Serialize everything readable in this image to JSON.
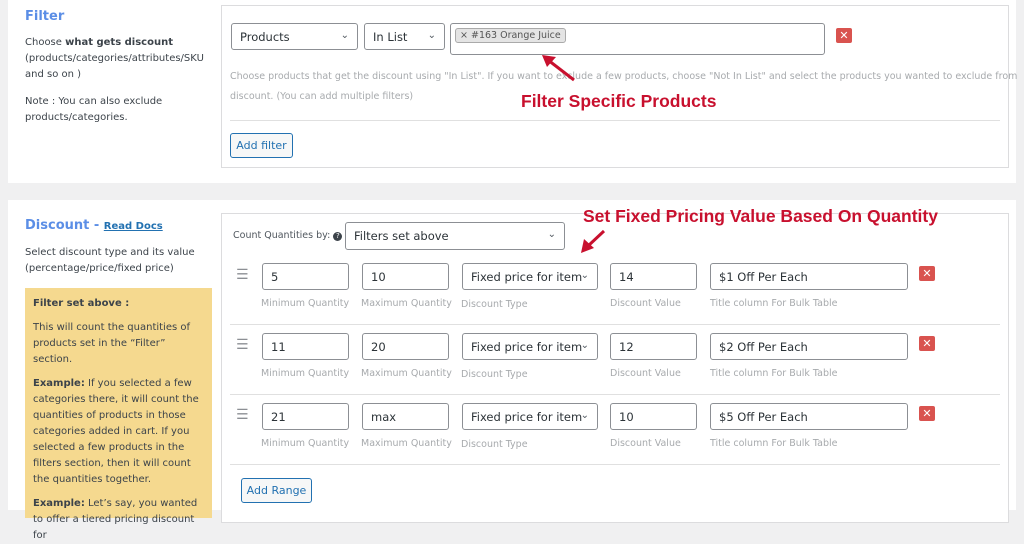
{
  "filter": {
    "title": "Filter",
    "desc_pre": "Choose ",
    "desc_bold": "what gets discount",
    "desc_post": "(products/categories/attributes/SKU and so on )",
    "note": "Note : You can also exclude products/categories.",
    "type_select": "Products",
    "operator_select": "In List",
    "selected_tag": "#163 Orange Juice",
    "help_line1": "Choose products that get the discount using \"In List\". If you want to exclude a few products, choose \"Not In List\" and select the products you wanted to exclude from",
    "help_line2": "discount. (You can add multiple filters)",
    "add_filter": "Add filter",
    "annotation": "Filter Specific Products"
  },
  "discount": {
    "title": "Discount - ",
    "read_docs": "Read Docs",
    "desc": "Select discount type and its value (percentage/price/fixed price)",
    "info_title": "Filter set above :",
    "info_p1": "This will count the quantities of products set in the “Filter” section.",
    "info_ex1_bold": "Example:",
    "info_ex1": " If you selected a few categories there, it will count the quantities of products in those categories added in cart. If you selected a few products in the filters section, then it will count the quantities together.",
    "info_ex2_bold": "Example:",
    "info_ex2": " Let’s say, you wanted to offer a tiered pricing discount for",
    "count_label": "Count Quantities by:",
    "count_select": "Filters set above",
    "annotation": "Set Fixed Pricing Value Based On Quantity",
    "labels": {
      "min": "Minimum Quantity",
      "max": "Maximum Quantity",
      "type": "Discount Type",
      "value": "Discount Value",
      "title": "Title column For Bulk Table"
    },
    "ranges": [
      {
        "min": "5",
        "max": "10",
        "type": "Fixed price for item",
        "value": "14",
        "title": "$1 Off Per Each"
      },
      {
        "min": "11",
        "max": "20",
        "type": "Fixed price for item",
        "value": "12",
        "title": "$2 Off Per Each"
      },
      {
        "min": "21",
        "max": "max",
        "type": "Fixed price for item",
        "value": "10",
        "title": "$5 Off Per Each"
      }
    ],
    "add_range": "Add Range"
  },
  "colors": {
    "accent": "#2271b1",
    "annotation": "#c8102e",
    "remove": "#d9534f",
    "info_bg": "#f5d98f"
  }
}
